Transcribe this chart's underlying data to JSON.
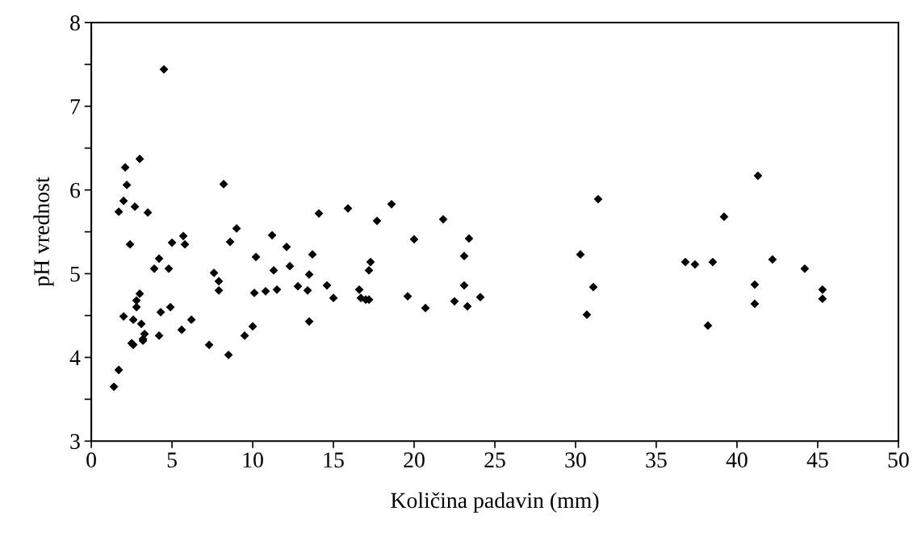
{
  "chart_data": {
    "type": "scatter",
    "xlabel": "Količina padavin (mm)",
    "ylabel": "pH vrednost",
    "xlim": [
      0,
      50
    ],
    "xticks": [
      0,
      5,
      10,
      15,
      20,
      25,
      30,
      35,
      40,
      45,
      50
    ],
    "ylim": [
      3,
      8
    ],
    "yticks": [
      3,
      {
        "value": 3.5,
        "label": null
      },
      4,
      {
        "value": 4.5,
        "label": null
      },
      5,
      {
        "value": 5.5,
        "label": null
      },
      6,
      {
        "value": 6.5,
        "label": null
      },
      7,
      {
        "value": 7.5,
        "label": null
      },
      8
    ],
    "grid": false,
    "legend": false,
    "marker": "diamond",
    "series": [
      {
        "color": "#000000",
        "x": [
          1.4,
          1.7,
          1.7,
          2.0,
          2.0,
          2.1,
          2.2,
          2.4,
          2.5,
          2.6,
          2.6,
          2.7,
          2.8,
          2.8,
          3.0,
          3.0,
          3.1,
          3.2,
          3.2,
          3.3,
          3.5,
          3.9,
          4.2,
          4.2,
          4.3,
          4.5,
          4.8,
          4.9,
          5.0,
          5.6,
          5.7,
          5.8,
          6.2,
          7.3,
          7.6,
          7.9,
          7.9,
          8.2,
          8.5,
          8.6,
          9.0,
          9.5,
          10.0,
          10.1,
          10.2,
          10.8,
          11.2,
          11.3,
          11.5,
          12.1,
          12.3,
          12.8,
          13.4,
          13.5,
          13.5,
          13.7,
          14.1,
          14.6,
          15.0,
          15.9,
          16.6,
          16.7,
          17.0,
          17.2,
          17.2,
          17.3,
          17.7,
          18.6,
          19.6,
          20.0,
          20.7,
          21.8,
          22.5,
          23.1,
          23.1,
          23.3,
          23.4,
          24.1,
          30.3,
          30.7,
          31.1,
          31.4,
          36.8,
          37.4,
          38.2,
          38.5,
          39.2,
          41.1,
          41.1,
          41.3,
          42.2,
          44.2,
          45.3,
          45.3
        ],
        "values": [
          3.65,
          3.85,
          5.74,
          4.49,
          5.87,
          6.27,
          6.06,
          5.35,
          4.17,
          4.15,
          4.45,
          5.8,
          4.6,
          4.68,
          4.76,
          6.37,
          4.4,
          4.22,
          4.2,
          4.28,
          5.73,
          5.06,
          5.18,
          4.26,
          4.54,
          7.44,
          5.06,
          4.6,
          5.37,
          4.33,
          5.45,
          5.35,
          4.45,
          4.15,
          5.01,
          4.91,
          4.8,
          6.07,
          4.03,
          5.38,
          5.54,
          4.26,
          4.37,
          4.77,
          5.2,
          4.79,
          5.46,
          5.04,
          4.81,
          5.32,
          5.09,
          4.85,
          4.8,
          4.99,
          4.43,
          5.23,
          5.72,
          4.86,
          4.71,
          5.78,
          4.81,
          4.71,
          4.69,
          4.69,
          5.04,
          5.14,
          5.63,
          5.83,
          4.73,
          5.41,
          4.59,
          5.65,
          4.67,
          4.86,
          5.21,
          4.61,
          5.42,
          4.72,
          5.23,
          4.51,
          4.84,
          5.89,
          5.14,
          5.11,
          4.38,
          5.14,
          5.68,
          4.87,
          4.64,
          6.17,
          5.17,
          5.06,
          4.81,
          4.7
        ]
      }
    ]
  }
}
